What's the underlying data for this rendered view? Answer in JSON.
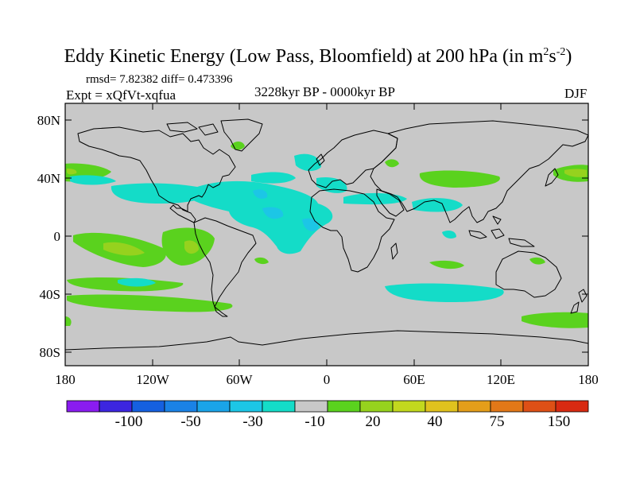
{
  "title": {
    "main": "Eddy Kinetic Energy (Low Pass, Bloomfield) at 200 hPa (in m",
    "sup1": "2",
    "mid": "s",
    "sup2": "-2",
    "end": ")"
  },
  "info": {
    "rmsd": "rmsd= 7.82382 diff= 0.473396",
    "expt": "Expt = xQfVt-xqfua",
    "period": "3228kyr BP - 0000kyr BP",
    "season": "DJF"
  },
  "axes": {
    "lat_labels": [
      "80N",
      "40N",
      "0",
      "40S",
      "80S"
    ],
    "lon_labels": [
      "180",
      "120W",
      "60W",
      "0",
      "60E",
      "120E",
      "180"
    ]
  },
  "colorbar": {
    "colors": [
      "#8a1cf0",
      "#3c26e0",
      "#1560e0",
      "#1a82e6",
      "#1aa4e8",
      "#1cc6e6",
      "#14dcc8",
      "#c8c8c8",
      "#5ad21e",
      "#96d21e",
      "#c2d81e",
      "#e0c21e",
      "#e49e1a",
      "#e27818",
      "#de5016",
      "#d82a12"
    ],
    "labels": [
      "-100",
      "-50",
      "-30",
      "-10",
      "20",
      "40",
      "75",
      "150"
    ]
  },
  "colors": {
    "land_ocean": "#c8c8c8",
    "positive": "#5ad21e",
    "positive_strong": "#96d21e",
    "negative": "#14dcc8",
    "negative_strong": "#1cc6e6"
  }
}
